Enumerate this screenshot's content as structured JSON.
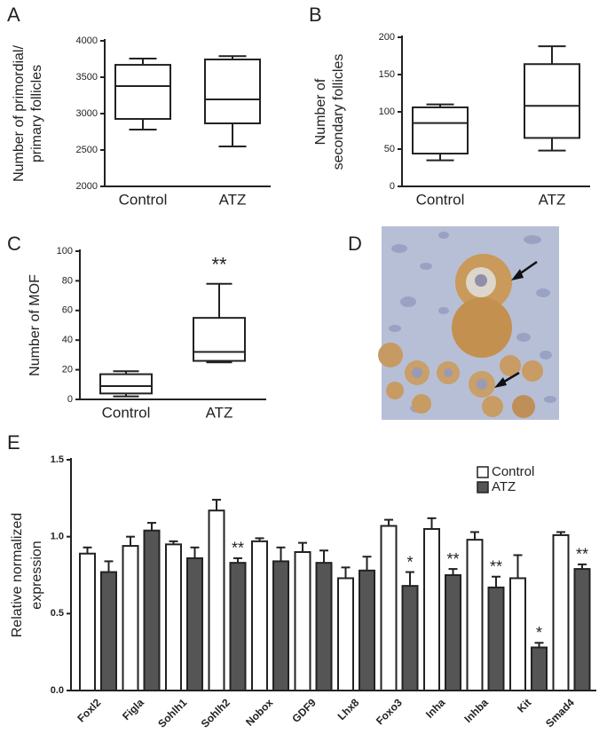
{
  "chart_data": [
    {
      "type": "box",
      "panel": "A",
      "ylabel": [
        "Number of primordial/",
        "primary follicles"
      ],
      "categories": [
        "Control",
        "ATZ"
      ],
      "boxes": [
        {
          "min": 2780,
          "q1": 2927,
          "median": 3378,
          "q3": 3670,
          "max": 3756
        },
        {
          "min": 2549,
          "q1": 2866,
          "median": 3195,
          "q3": 3744,
          "max": 3790
        }
      ],
      "ylim": [
        2000,
        4000
      ],
      "yticks": [
        2000,
        2500,
        3000,
        3500,
        4000
      ],
      "significance": [
        null,
        null
      ],
      "color": "#ffffff"
    },
    {
      "type": "box",
      "panel": "B",
      "ylabel": [
        "Number of",
        "secondary follicles"
      ],
      "categories": [
        "Control",
        "ATZ"
      ],
      "boxes": [
        {
          "min": 35,
          "q1": 44,
          "median": 85,
          "q3": 106,
          "max": 110
        },
        {
          "min": 48,
          "q1": 65,
          "median": 108,
          "q3": 164,
          "max": 188
        }
      ],
      "ylim": [
        0,
        200
      ],
      "yticks": [
        0,
        50,
        100,
        150,
        200
      ],
      "significance": [
        null,
        null
      ],
      "color": "#ffffff"
    },
    {
      "type": "box",
      "panel": "C",
      "ylabel": [
        "Number of MOF"
      ],
      "categories": [
        "Control",
        "ATZ"
      ],
      "boxes": [
        {
          "min": 2,
          "q1": 4,
          "median": 9,
          "q3": 17,
          "max": 19
        },
        {
          "min": 25,
          "q1": 26,
          "median": 32,
          "q3": 55,
          "max": 78
        }
      ],
      "ylim": [
        0,
        100
      ],
      "yticks": [
        0,
        20,
        40,
        60,
        80,
        100
      ],
      "significance": [
        null,
        "**"
      ],
      "color": "#ffffff"
    },
    {
      "type": "bar",
      "panel": "E",
      "ylabel": [
        "Relative normalized",
        "expression"
      ],
      "categories": [
        "Foxl2",
        "Figla",
        "Sohlh1",
        "Sohlh2",
        "Nobox",
        "GDF9",
        "Lhx8",
        "Foxo3",
        "Inha",
        "Inhba",
        "Kit",
        "Smad4"
      ],
      "series": [
        {
          "name": "Control",
          "color": "#ffffff",
          "values": [
            0.89,
            0.94,
            0.95,
            1.17,
            0.97,
            0.9,
            0.73,
            1.07,
            1.05,
            0.98,
            0.73,
            1.01
          ],
          "errors": [
            0.04,
            0.06,
            0.02,
            0.07,
            0.02,
            0.06,
            0.07,
            0.04,
            0.07,
            0.05,
            0.15,
            0.02
          ]
        },
        {
          "name": "ATZ",
          "color": "#555555",
          "values": [
            0.77,
            1.04,
            0.86,
            0.83,
            0.84,
            0.83,
            0.78,
            0.68,
            0.75,
            0.67,
            0.28,
            0.79
          ],
          "errors": [
            0.07,
            0.05,
            0.07,
            0.03,
            0.09,
            0.08,
            0.09,
            0.09,
            0.04,
            0.07,
            0.03,
            0.03
          ]
        }
      ],
      "significance": [
        null,
        null,
        null,
        "**",
        null,
        null,
        null,
        "*",
        "**",
        "**",
        "*",
        "**"
      ],
      "ylim": [
        0,
        1.5
      ],
      "yticks": [
        {
          "value": 0,
          "label": "0.0"
        },
        {
          "value": 0.5,
          "label": "0.5"
        },
        {
          "value": 1,
          "label": "1.0"
        },
        {
          "value": 1.5,
          "label": "1.5"
        }
      ],
      "legend": "top-right"
    }
  ],
  "image_panel": {
    "label": "D"
  }
}
